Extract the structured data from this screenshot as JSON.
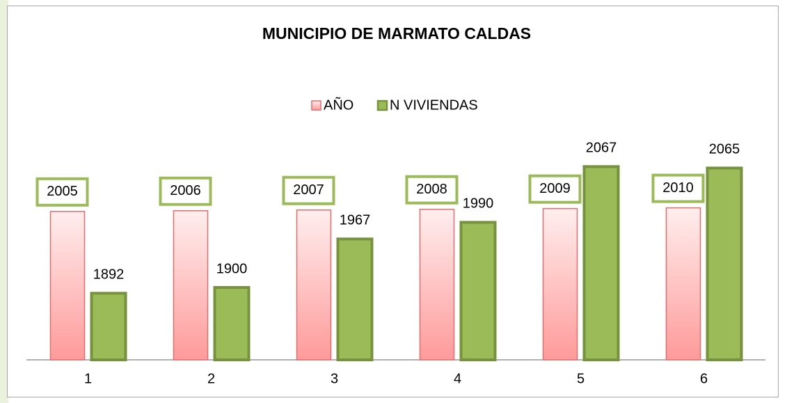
{
  "chart_data": {
    "type": "bar",
    "title": "MUNICIPIO DE MARMATO CALDAS",
    "categories": [
      1,
      2,
      3,
      4,
      5,
      6
    ],
    "series": [
      {
        "name": "AÑO",
        "color": "#e46c6c",
        "values": [
          2005,
          2006,
          2007,
          2008,
          2009,
          2010
        ]
      },
      {
        "name": "N VIVIENDAS",
        "color": "#9bbb59",
        "values": [
          1892,
          1900,
          1967,
          1990,
          2067,
          2065
        ]
      }
    ],
    "ylim": [
      1800,
      2100
    ]
  }
}
